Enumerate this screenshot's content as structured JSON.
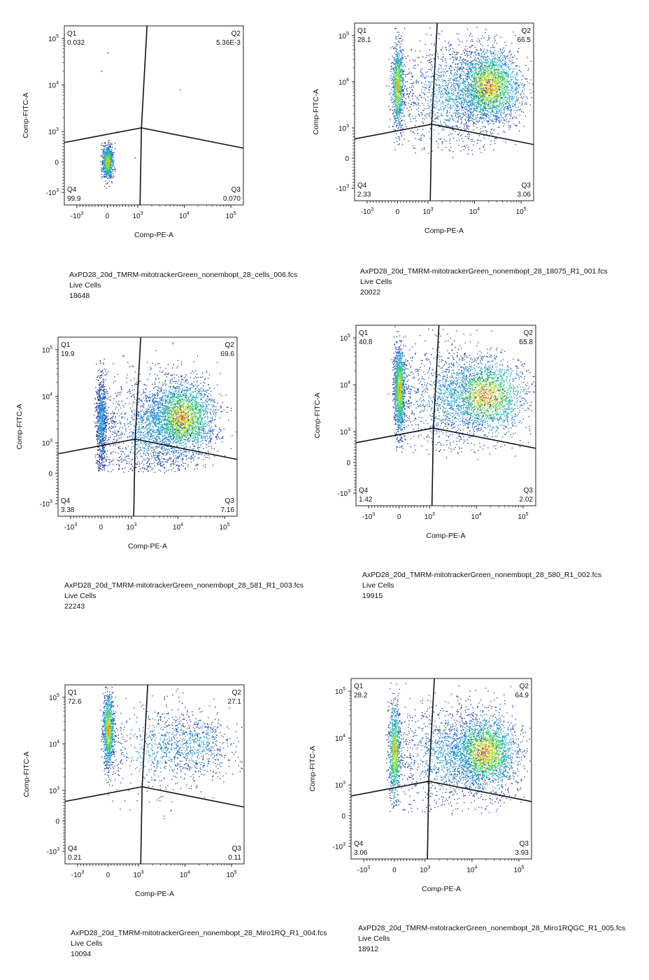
{
  "chart_data": [
    {
      "type": "scatter",
      "xlabel": "Comp-PE-A",
      "ylabel": "Comp-FITC-A",
      "xticks": [
        "-10^3",
        "0",
        "10^3",
        "10^4",
        "10^5"
      ],
      "yticks": [
        "-10^3",
        "0",
        "10^3",
        "10^4",
        "10^5"
      ],
      "quadrants": [
        {
          "name": "Q1",
          "value": "0.032"
        },
        {
          "name": "Q2",
          "value": "5.36E-3"
        },
        {
          "name": "Q3",
          "value": "0.070"
        },
        {
          "name": "Q4",
          "value": "99.9"
        }
      ],
      "gate_center": {
        "x": 1200,
        "y": 1200
      },
      "caption": {
        "file": "AxPD28_20d_TMRM-mitotrackerGreen_nonembopt_28_cells_006.fcs",
        "population": "Live Cells",
        "count": "18648"
      },
      "clusters": [
        {
          "x": 0,
          "y": 0,
          "sx": 90,
          "sy": 260,
          "n": 900,
          "dense": true
        }
      ],
      "sparse": [
        {
          "x": 0,
          "y": 50000
        },
        {
          "x": -200,
          "y": 20000
        },
        {
          "x": 8000,
          "y": 8000
        },
        {
          "x": 300,
          "y": 1000
        },
        {
          "x": 900,
          "y": 150
        }
      ]
    },
    {
      "type": "scatter",
      "xlabel": "Comp-PE-A",
      "ylabel": "Comp-FITC-A",
      "xticks": [
        "-10^3",
        "0",
        "10^3",
        "10^4",
        "10^5"
      ],
      "yticks": [
        "-10^3",
        "0",
        "10^3",
        "10^4",
        "10^5"
      ],
      "quadrants": [
        {
          "name": "Q1",
          "value": "28.1"
        },
        {
          "name": "Q2",
          "value": "66.5"
        },
        {
          "name": "Q3",
          "value": "3.06"
        },
        {
          "name": "Q4",
          "value": "2.33"
        }
      ],
      "gate_center": {
        "x": 1200,
        "y": 1200
      },
      "caption": {
        "file": "AxPD28_20d_TMRM-mitotrackerGreen_nonembopt_28_18075_R1_001.fcs",
        "population": "Live Cells",
        "count": "20022"
      },
      "clusters": [
        {
          "x": 0,
          "y": 8000,
          "sx": 90,
          "sy": 0.45,
          "n": 1100,
          "dense": true,
          "logy": true
        },
        {
          "x": 20000,
          "y": 8000,
          "sx": 0.35,
          "sy": 0.4,
          "n": 2600,
          "dense": true,
          "logx": true,
          "logy": true
        },
        {
          "x": 3000,
          "y": 5000,
          "sx": 0.5,
          "sy": 0.55,
          "n": 1300,
          "dense": false,
          "logx": true,
          "logy": true
        }
      ],
      "sparse": []
    },
    {
      "type": "scatter",
      "xlabel": "Comp-PE-A",
      "ylabel": "Comp-FITC-A",
      "xticks": [
        "-10^3",
        "0",
        "10^3",
        "10^4",
        "10^5"
      ],
      "yticks": [
        "-10^3",
        "0",
        "10^3",
        "10^4",
        "10^5"
      ],
      "quadrants": [
        {
          "name": "Q1",
          "value": "19.9"
        },
        {
          "name": "Q2",
          "value": "69.6"
        },
        {
          "name": "Q3",
          "value": "7.16"
        },
        {
          "name": "Q4",
          "value": "3.38"
        }
      ],
      "gate_center": {
        "x": 1200,
        "y": 1200
      },
      "caption": {
        "file": "AxPD28_20d_TMRM-mitotrackerGreen_nonembopt_28_581_R1_003.fcs",
        "population": "Live Cells",
        "count": "22243"
      },
      "clusters": [
        {
          "x": 0,
          "y": 3000,
          "sx": 90,
          "sy": 0.5,
          "n": 900,
          "dense": false,
          "logy": true
        },
        {
          "x": 12000,
          "y": 3500,
          "sx": 0.35,
          "sy": 0.4,
          "n": 2600,
          "dense": true,
          "logx": true,
          "logy": true
        },
        {
          "x": 2500,
          "y": 2000,
          "sx": 0.5,
          "sy": 0.55,
          "n": 1400,
          "dense": false,
          "logx": true,
          "logy": true
        }
      ],
      "sparse": []
    },
    {
      "type": "scatter",
      "xlabel": "Comp-PE-A",
      "ylabel": "Comp-FITC-A",
      "xticks": [
        "-10^3",
        "0",
        "10^3",
        "10^4",
        "10^5"
      ],
      "yticks": [
        "-10^3",
        "0",
        "10^3",
        "10^4",
        "10^5"
      ],
      "quadrants": [
        {
          "name": "Q1",
          "value": "40.8"
        },
        {
          "name": "Q2",
          "value": "55.8"
        },
        {
          "name": "Q3",
          "value": "2.02"
        },
        {
          "name": "Q4",
          "value": "1.42"
        }
      ],
      "gate_center": {
        "x": 1200,
        "y": 1200
      },
      "caption": {
        "file": "AxPD28_20d_TMRM-mitotrackerGreen_nonembopt_28_580_R1_002.fcs",
        "population": "Live Cells",
        "count": "19915"
      },
      "clusters": [
        {
          "x": 0,
          "y": 8000,
          "sx": 90,
          "sy": 0.45,
          "n": 1500,
          "dense": true,
          "logy": true
        },
        {
          "x": 15000,
          "y": 6000,
          "sx": 0.45,
          "sy": 0.4,
          "n": 2100,
          "dense": true,
          "logx": true,
          "logy": true
        },
        {
          "x": 2500,
          "y": 6000,
          "sx": 0.5,
          "sy": 0.55,
          "n": 1100,
          "dense": false,
          "logx": true,
          "logy": true
        }
      ],
      "sparse": []
    },
    {
      "type": "scatter",
      "xlabel": "Comp-PE-A",
      "ylabel": "Comp-FITC-A",
      "xticks": [
        "-10^3",
        "0",
        "10^3",
        "10^4",
        "10^5"
      ],
      "yticks": [
        "-10^3",
        "0",
        "10^3",
        "10^4",
        "10^5"
      ],
      "quadrants": [
        {
          "name": "Q1",
          "value": "72.6"
        },
        {
          "name": "Q2",
          "value": "27.1"
        },
        {
          "name": "Q3",
          "value": "0.11"
        },
        {
          "name": "Q4",
          "value": "0.21"
        }
      ],
      "gate_center": {
        "x": 1200,
        "y": 1200
      },
      "caption": {
        "file": "AxPD28_20d_TMRM-mitotrackerGreen_nonembopt_28_Miro1RQ_R1_004.fcs",
        "population": "Live Cells",
        "count": "10094"
      },
      "clusters": [
        {
          "x": 0,
          "y": 20000,
          "sx": 90,
          "sy": 0.4,
          "n": 1100,
          "dense": true,
          "logy": true
        },
        {
          "x": 15000,
          "y": 10000,
          "sx": 0.45,
          "sy": 0.35,
          "n": 700,
          "dense": false,
          "logx": true,
          "logy": true
        },
        {
          "x": 2500,
          "y": 8000,
          "sx": 0.5,
          "sy": 0.5,
          "n": 500,
          "dense": false,
          "logx": true,
          "logy": true
        }
      ],
      "sparse": []
    },
    {
      "type": "scatter",
      "xlabel": "Comp-PE-A",
      "ylabel": "Comp-FITC-A",
      "xticks": [
        "-10^3",
        "0",
        "10^3",
        "10^4",
        "10^5"
      ],
      "yticks": [
        "-10^3",
        "0",
        "10^3",
        "10^4",
        "10^5"
      ],
      "quadrants": [
        {
          "name": "Q1",
          "value": "28.2"
        },
        {
          "name": "Q2",
          "value": "64.9"
        },
        {
          "name": "Q3",
          "value": "3.93"
        },
        {
          "name": "Q4",
          "value": "3.06"
        }
      ],
      "gate_center": {
        "x": 1200,
        "y": 1200
      },
      "caption": {
        "file": "AxPD28_20d_TMRM-mitotrackerGreen_nonembopt_28_Miro1RQGC_R1_005.fcs",
        "population": "Live Cells",
        "count": "18912"
      },
      "clusters": [
        {
          "x": 0,
          "y": 5000,
          "sx": 90,
          "sy": 0.5,
          "n": 1000,
          "dense": true,
          "logy": true
        },
        {
          "x": 18000,
          "y": 5000,
          "sx": 0.35,
          "sy": 0.4,
          "n": 2500,
          "dense": true,
          "logx": true,
          "logy": true
        },
        {
          "x": 3000,
          "y": 4000,
          "sx": 0.5,
          "sy": 0.55,
          "n": 1200,
          "dense": false,
          "logx": true,
          "logy": true
        }
      ],
      "sparse": []
    }
  ]
}
